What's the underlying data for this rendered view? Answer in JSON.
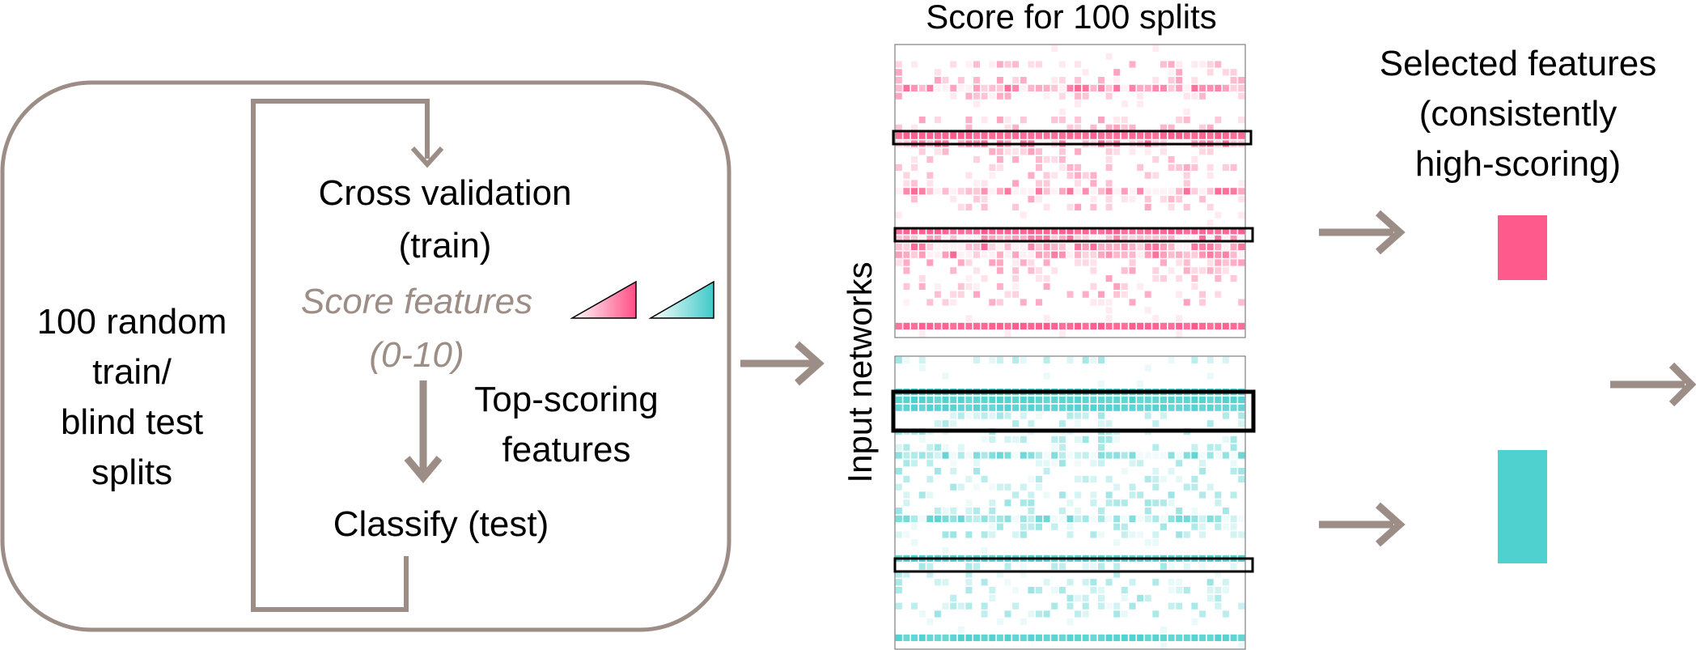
{
  "colors": {
    "frame": "#9c8e86",
    "pink": "#ff5a8c",
    "teal": "#4fd1cf",
    "text": "#000000",
    "score_text": "#9c8e86",
    "highlight_border": "#000000"
  },
  "loop_box": {
    "splits_label": [
      "100 random",
      "train/",
      "blind test",
      "splits"
    ],
    "cv_label": [
      "Cross validation",
      "(train)"
    ],
    "score_label": [
      "Score features",
      "(0-10)"
    ],
    "top_scoring_label": [
      "Top-scoring",
      "features"
    ],
    "classify_label": "Classify (test)"
  },
  "heatmaps": {
    "title": "Score for 100 splits",
    "ylabel": "Input networks",
    "columns": 45,
    "pink_rows": 37,
    "teal_rows": 37
  },
  "selected": {
    "label": [
      "Selected features",
      "(consistently",
      "high-scoring)"
    ]
  },
  "icons": {
    "pink_gradient": "gradient-wedge-icon",
    "teal_gradient": "gradient-wedge-icon"
  }
}
